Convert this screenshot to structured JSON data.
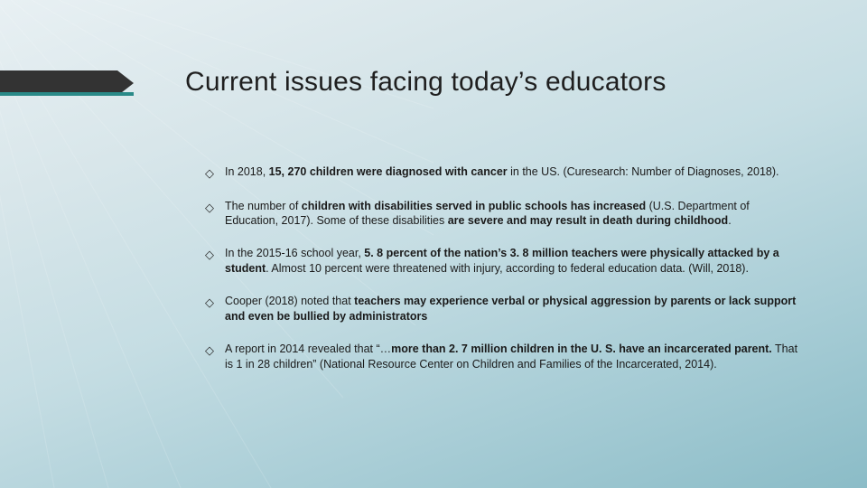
{
  "colors": {
    "header_bar": "#333333",
    "accent": "#2a8a88",
    "text": "#1a1a1a",
    "gradient_start": "#e8f0f3",
    "gradient_end": "#8bbcc7"
  },
  "typography": {
    "title_fontsize": 30,
    "body_fontsize": 12.5,
    "font_family": "Arial"
  },
  "title": "Current issues facing today’s educators",
  "bullets": [
    {
      "html": "In 2018, <b>15, 270 children were diagnosed with cancer</b> in the US. (Curesearch: Number of Diagnoses, 2018)."
    },
    {
      "html": "The number of <b>children with disabilities served in public schools has increased</b> (U.S. Department of Education, 2017). Some of these disabilities <b>are severe and may result in death during childhood</b>."
    },
    {
      "html": "In the 2015-16 school year, <b>5. 8 percent of the nation’s 3. 8 million teachers were physically attacked by a student</b>. Almost 10 percent were threatened with injury, according to federal education data. (Will, 2018)."
    },
    {
      "html": "Cooper (2018) noted that <b>teachers may experience verbal or physical aggression by parents or lack support and even be bullied by administrators</b>"
    },
    {
      "html": "A report in 2014 revealed that “…<b>more than 2. 7 million children in the U. S. have an incarcerated parent.</b> That is 1 in 28 children” (National Resource Center on Children and Families of the Incarcerated, 2014)."
    }
  ],
  "bullet_marker": "◇"
}
